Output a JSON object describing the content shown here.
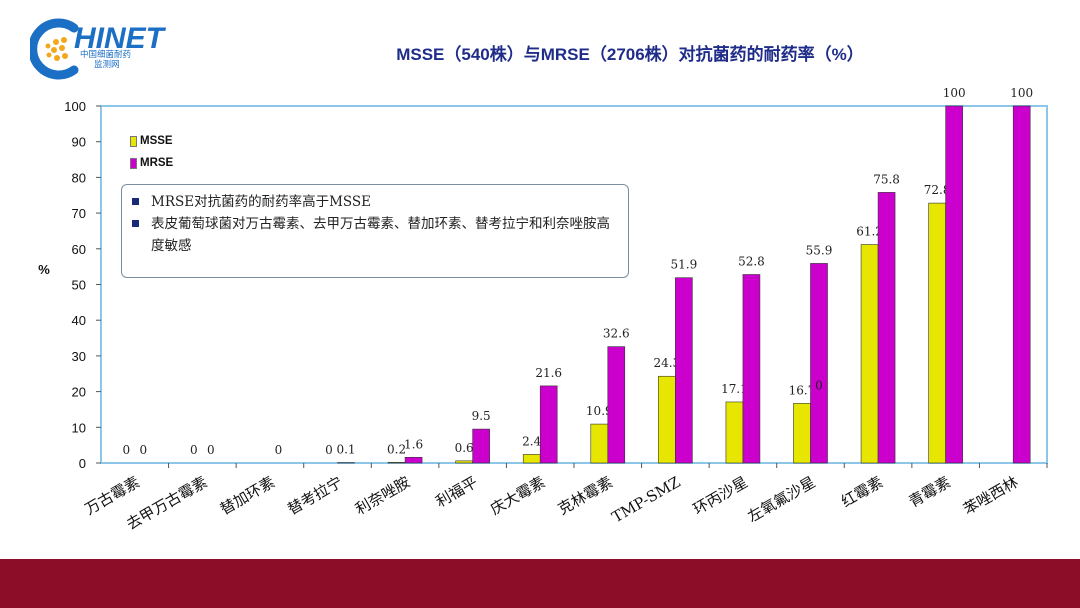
{
  "logo": {
    "wordmark": "HINET",
    "initial": "C",
    "subtitle_line1": "中国细菌耐药",
    "subtitle_line2": "监测网"
  },
  "title": "MSSE（540株）与MRSE（2706株）对抗菌药的耐药率（%）",
  "callout": {
    "bullets": [
      "MRSE对抗菌药的耐药率高于MSSE",
      "表皮葡萄球菌对万古霉素、去甲万古霉素、替加环素、替考拉宁和利奈唑胺高度敏感"
    ]
  },
  "colors": {
    "msse": "#e6e600",
    "mrse": "#cc00cc",
    "axis_border": "#8cc6e8",
    "footer": "#8b0d28",
    "title": "#1f2c8a"
  },
  "chart_data": {
    "type": "bar",
    "ylabel": "%",
    "ylim": [
      0,
      100
    ],
    "yticks": [
      0,
      10,
      20,
      30,
      40,
      50,
      60,
      70,
      80,
      90,
      100
    ],
    "legend_position": "top-left",
    "categories": [
      "万古霉素",
      "去甲万古霉素",
      "替加环素",
      "替考拉宁",
      "利奈唑胺",
      "利福平",
      "庆大霉素",
      "克林霉素",
      "TMP-SMZ",
      "环丙沙星",
      "左氧氟沙星",
      "红霉素",
      "青霉素",
      "苯唑西林"
    ],
    "series": [
      {
        "name": "MSSE",
        "values": [
          0,
          0,
          null,
          0,
          0.2,
          0.6,
          2.4,
          10.9,
          24.3,
          17.1,
          16.7,
          61.2,
          72.8,
          null
        ],
        "labels": [
          "0",
          "0",
          "",
          "0",
          "0.2",
          "0.6",
          "2.4",
          "10.9",
          "24.3",
          "17.1",
          "16.7",
          "61.2",
          "72.8",
          ""
        ]
      },
      {
        "name": "MRSE",
        "values": [
          0,
          0,
          0,
          0.1,
          1.6,
          9.5,
          21.6,
          32.6,
          51.9,
          52.8,
          55.9,
          75.8,
          100,
          100
        ],
        "labels": [
          "0",
          "0",
          "0",
          "0.1",
          "1.6",
          "9.5",
          "21.6",
          "32.6",
          "51.9",
          "52.8",
          "55.9",
          "75.8",
          "100",
          "100"
        ]
      }
    ],
    "extra_labels": [
      {
        "category_index": 10,
        "text": "0"
      }
    ]
  }
}
